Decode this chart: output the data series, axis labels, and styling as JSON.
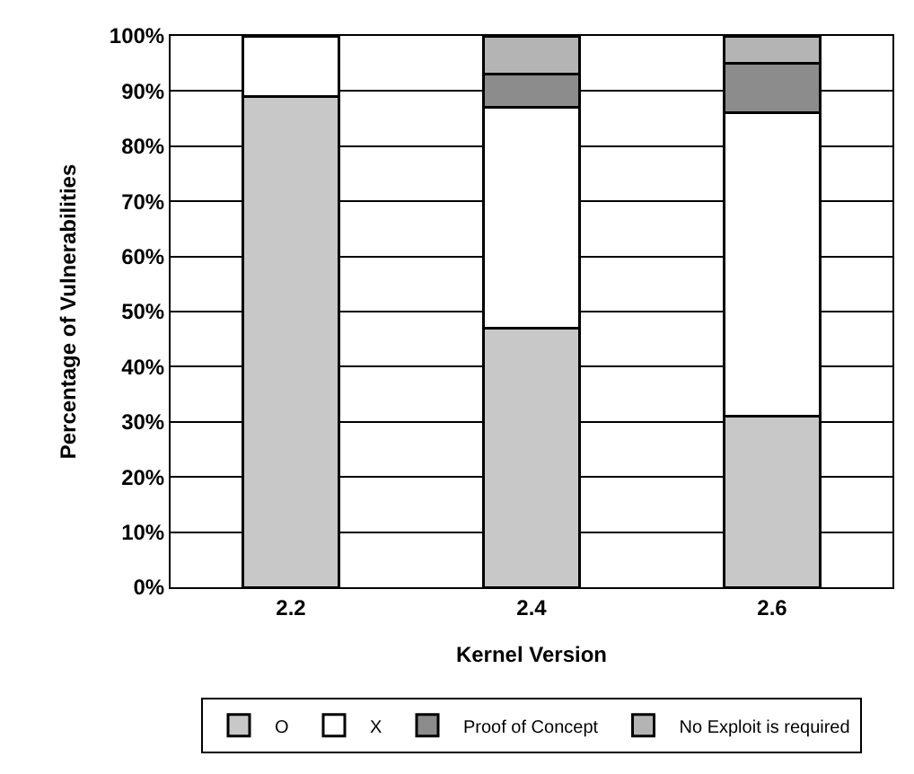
{
  "chart_data": {
    "type": "bar",
    "stacked": true,
    "xlabel": "Kernel Version",
    "ylabel": "Percentage of Vulnerabilities",
    "categories": [
      "2.2",
      "2.4",
      "2.6"
    ],
    "series": [
      {
        "name": "O",
        "color": "#c8c8c8",
        "values": [
          89,
          47,
          31
        ]
      },
      {
        "name": "X",
        "color": "#ffffff",
        "values": [
          11,
          40,
          55
        ]
      },
      {
        "name": "Proof of Concept",
        "color": "#8c8c8c",
        "values": [
          null,
          6,
          9
        ]
      },
      {
        "name": "No Exploit is required",
        "color": "#b4b4b4",
        "values": [
          null,
          7,
          5
        ]
      }
    ],
    "ylim": [
      0,
      100
    ],
    "yticks": [
      {
        "value": 0,
        "label": "0%"
      },
      {
        "value": 10,
        "label": "10%"
      },
      {
        "value": 20,
        "label": "20%"
      },
      {
        "value": 30,
        "label": "30%"
      },
      {
        "value": 40,
        "label": "40%"
      },
      {
        "value": 50,
        "label": "50%"
      },
      {
        "value": 60,
        "label": "60%"
      },
      {
        "value": 70,
        "label": "70%"
      },
      {
        "value": 80,
        "label": "80%"
      },
      {
        "value": 90,
        "label": "90%"
      },
      {
        "value": 100,
        "label": "100%"
      }
    ],
    "grid": "y",
    "legend": "bottom"
  }
}
